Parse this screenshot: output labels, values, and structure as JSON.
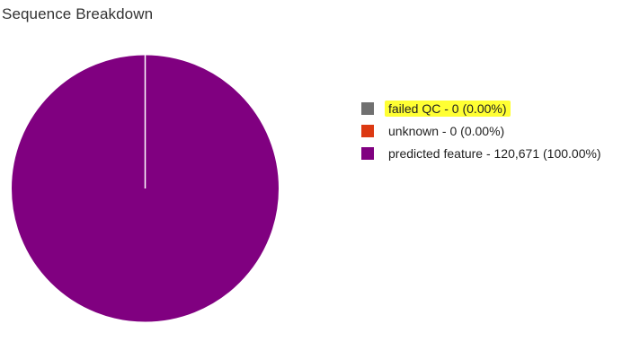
{
  "chart_data": {
    "type": "pie",
    "title": "Sequence Breakdown",
    "slices": [
      {
        "label": "failed QC",
        "value": 0,
        "percent": "0.00%",
        "legend": "failed QC - 0 (0.00%)",
        "color": "#707070",
        "highlighted": true
      },
      {
        "label": "unknown",
        "value": 0,
        "percent": "0.00%",
        "legend": "unknown - 0 (0.00%)",
        "color": "#dc3912",
        "highlighted": false
      },
      {
        "label": "predicted feature",
        "value": 120671,
        "percent": "100.00%",
        "legend": "predicted feature - 120,671 (100.00%)",
        "color": "#800080",
        "highlighted": false
      }
    ],
    "legend_position": "right",
    "highlight_color": "#ffff33"
  }
}
